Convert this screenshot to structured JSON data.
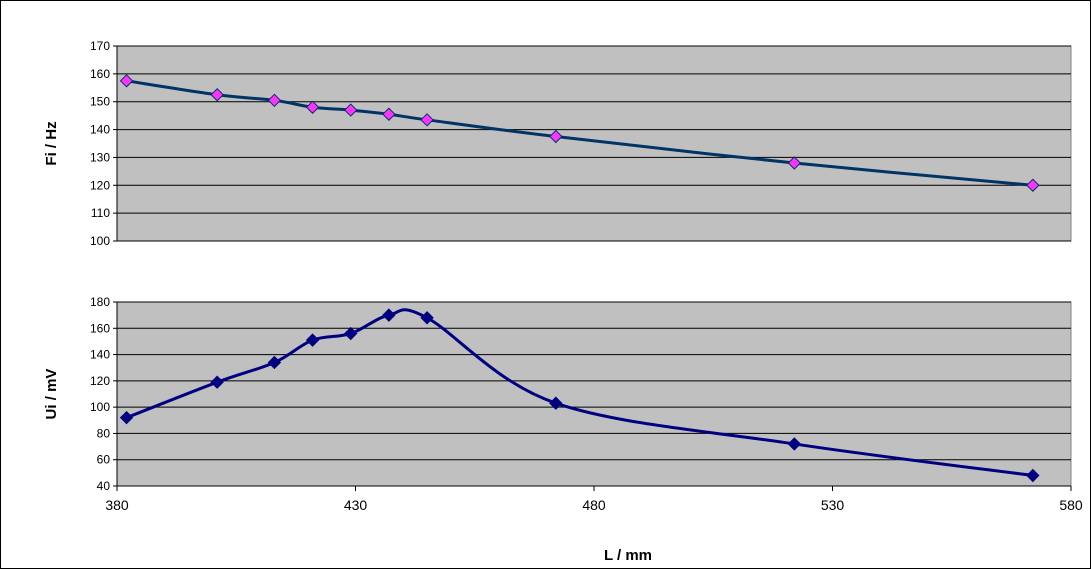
{
  "chart_data": [
    {
      "type": "line",
      "ylabel": "Fi / Hz",
      "xlabel": "",
      "ylim": [
        100,
        170
      ],
      "yticks": [
        100,
        110,
        120,
        130,
        140,
        150,
        160,
        170
      ],
      "xlim": [
        380,
        580
      ],
      "grid": true,
      "plot_background": "#c0c0c0",
      "series": [
        {
          "x": [
            382,
            401,
            413,
            421,
            429,
            437,
            445,
            472,
            522,
            572
          ],
          "values": [
            157.5,
            152.5,
            150.5,
            148,
            147,
            145.5,
            143.5,
            137.5,
            128,
            120
          ],
          "line_color": "#003366",
          "marker": "diamond",
          "marker_color": "#ff33ff"
        }
      ]
    },
    {
      "type": "line",
      "ylabel": "Ui / mV",
      "xlabel": "L / mm",
      "ylim": [
        40,
        180
      ],
      "yticks": [
        40,
        60,
        80,
        100,
        120,
        140,
        160,
        180
      ],
      "xlim": [
        380,
        580
      ],
      "xticks": [
        380,
        430,
        480,
        530,
        580
      ],
      "grid": true,
      "plot_background": "#c0c0c0",
      "series": [
        {
          "x": [
            382,
            401,
            413,
            421,
            429,
            437,
            445,
            472,
            522,
            572
          ],
          "values": [
            92,
            119,
            134,
            151,
            156,
            170,
            168,
            103,
            72,
            48
          ],
          "line_color": "#000080",
          "marker": "diamond",
          "marker_color": "#000080"
        }
      ]
    }
  ]
}
